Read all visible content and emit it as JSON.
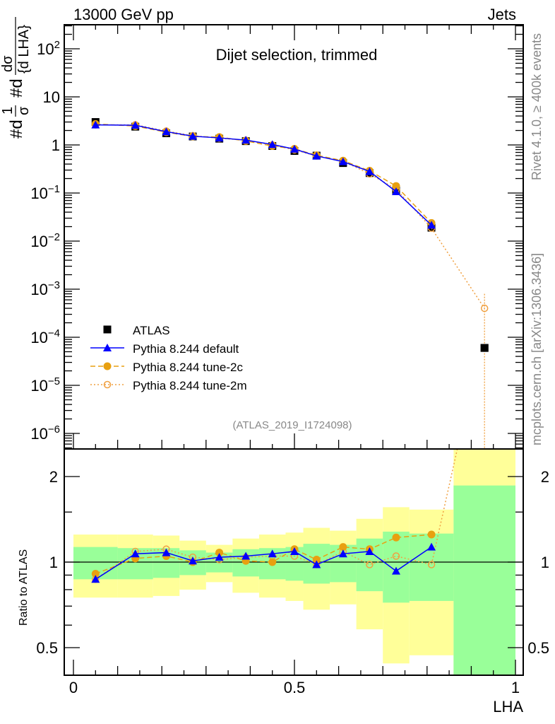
{
  "header": {
    "left": "13000 GeV pp",
    "right": "Jets",
    "title": "Dijet selection, trimmed",
    "side_top": "Rivet 4.1.0, ≥ 400k events",
    "side_bottom": "mcplots.cern.ch [arXiv:1306.3436]",
    "analysis": "(ATLAS_2019_I1724098)"
  },
  "ylabel_parts": [
    "#d",
    "1",
    "σ",
    "#d",
    "dσ",
    "{d LHA}"
  ],
  "colors": {
    "data": "#000000",
    "default": "#0000ff",
    "tune2c": "#e8a010",
    "tune2m": "#f0a040",
    "band_yellow": "#ffff99",
    "band_green": "#99ff99"
  },
  "chart_data": [
    {
      "type": "line",
      "panel": "main",
      "yscale": "log",
      "ylim": [
        4.8e-07,
        316
      ],
      "xlim": [
        -0.02,
        1.02
      ],
      "ytick_labels": [
        {
          "value": 100,
          "base": "10",
          "exp": "2"
        },
        {
          "value": 10,
          "base": "10",
          "exp": ""
        },
        {
          "value": 1,
          "base": "1",
          "exp": ""
        },
        {
          "value": 0.1,
          "base": "10",
          "exp": "−1"
        },
        {
          "value": 0.01,
          "base": "10",
          "exp": "−2"
        },
        {
          "value": 0.001,
          "base": "10",
          "exp": "−3"
        },
        {
          "value": 0.0001,
          "base": "10",
          "exp": "−4"
        },
        {
          "value": 1e-05,
          "base": "10",
          "exp": "−5"
        },
        {
          "value": 1e-06,
          "base": "10",
          "exp": "−6"
        }
      ],
      "x": [
        0.05,
        0.14,
        0.21,
        0.27,
        0.33,
        0.39,
        0.45,
        0.5,
        0.55,
        0.61,
        0.67,
        0.73,
        0.81,
        0.93
      ],
      "bin_edges": [
        0,
        0.1,
        0.18,
        0.24,
        0.3,
        0.36,
        0.42,
        0.48,
        0.52,
        0.58,
        0.64,
        0.7,
        0.76,
        0.86,
        1.0
      ],
      "series": [
        {
          "name": "ATLAS",
          "key": "data",
          "values": [
            3.0,
            2.4,
            1.75,
            1.5,
            1.35,
            1.2,
            0.95,
            0.75,
            0.6,
            0.42,
            0.26,
            0.115,
            0.019,
            6e-05
          ]
        },
        {
          "name": "Pythia 8.244 default",
          "key": "default",
          "values": [
            2.61,
            2.57,
            1.89,
            1.52,
            1.4,
            1.26,
            1.02,
            0.82,
            0.59,
            0.45,
            0.28,
            0.107,
            0.0215,
            null
          ]
        },
        {
          "name": "Pythia 8.244 tune-2c",
          "key": "tune2c",
          "values": [
            2.73,
            2.47,
            1.84,
            1.5,
            1.46,
            1.21,
            0.95,
            0.83,
            0.61,
            0.47,
            0.29,
            0.14,
            0.0238,
            null
          ]
        },
        {
          "name": "Pythia 8.244 tune-2m",
          "key": "tune2m",
          "values": [
            2.61,
            2.62,
            1.94,
            1.56,
            1.38,
            1.25,
            1.0,
            0.79,
            0.59,
            0.46,
            0.25,
            0.121,
            0.0186,
            0.0004
          ]
        }
      ],
      "legend_position": "bottom-left"
    },
    {
      "type": "line",
      "panel": "ratio",
      "yscale": "log",
      "ylabel": "Ratio to ATLAS",
      "xlabel": "LHA",
      "ylim": [
        0.4,
        2.5
      ],
      "ytick_labels": [
        {
          "value": 2,
          "text": "2"
        },
        {
          "value": 1,
          "text": "1"
        },
        {
          "value": 0.5,
          "text": "0.5"
        }
      ],
      "xtick_labels": [
        {
          "value": 0,
          "text": "0"
        },
        {
          "value": 0.5,
          "text": "0.5"
        },
        {
          "value": 1,
          "text": "1"
        }
      ],
      "band_yellow": [
        [
          0.75,
          1.25
        ],
        [
          0.75,
          1.25
        ],
        [
          0.76,
          1.24
        ],
        [
          0.8,
          1.19
        ],
        [
          0.85,
          1.15
        ],
        [
          0.78,
          1.21
        ],
        [
          0.75,
          1.25
        ],
        [
          0.73,
          1.27
        ],
        [
          0.68,
          1.32
        ],
        [
          0.71,
          1.29
        ],
        [
          0.58,
          1.42
        ],
        [
          0.44,
          1.56
        ],
        [
          0.47,
          1.53
        ],
        [
          0.3,
          3.0
        ]
      ],
      "band_green": [
        [
          0.87,
          1.13
        ],
        [
          0.87,
          1.12
        ],
        [
          0.88,
          1.12
        ],
        [
          0.9,
          1.1
        ],
        [
          0.92,
          1.08
        ],
        [
          0.89,
          1.11
        ],
        [
          0.87,
          1.12
        ],
        [
          0.86,
          1.13
        ],
        [
          0.84,
          1.16
        ],
        [
          0.85,
          1.15
        ],
        [
          0.79,
          1.21
        ],
        [
          0.72,
          1.28
        ],
        [
          0.73,
          1.26
        ],
        [
          0.3,
          1.86
        ]
      ],
      "series": [
        {
          "name": "Pythia 8.244 default",
          "key": "default",
          "values": [
            0.87,
            1.07,
            1.08,
            1.01,
            1.04,
            1.05,
            1.07,
            1.09,
            0.98,
            1.07,
            1.09,
            0.93,
            1.13,
            null
          ]
        },
        {
          "name": "Pythia 8.244 tune-2c",
          "key": "tune2c",
          "values": [
            0.91,
            1.03,
            1.05,
            1.0,
            1.08,
            1.01,
            1.0,
            1.11,
            1.02,
            1.13,
            1.11,
            1.22,
            1.25,
            null
          ]
        },
        {
          "name": "Pythia 8.244 tune-2m",
          "key": "tune2m",
          "values": [
            0.87,
            1.09,
            1.11,
            1.04,
            1.02,
            1.04,
            1.05,
            1.05,
            0.98,
            1.09,
            0.98,
            1.05,
            0.98,
            6.7
          ]
        }
      ]
    }
  ]
}
